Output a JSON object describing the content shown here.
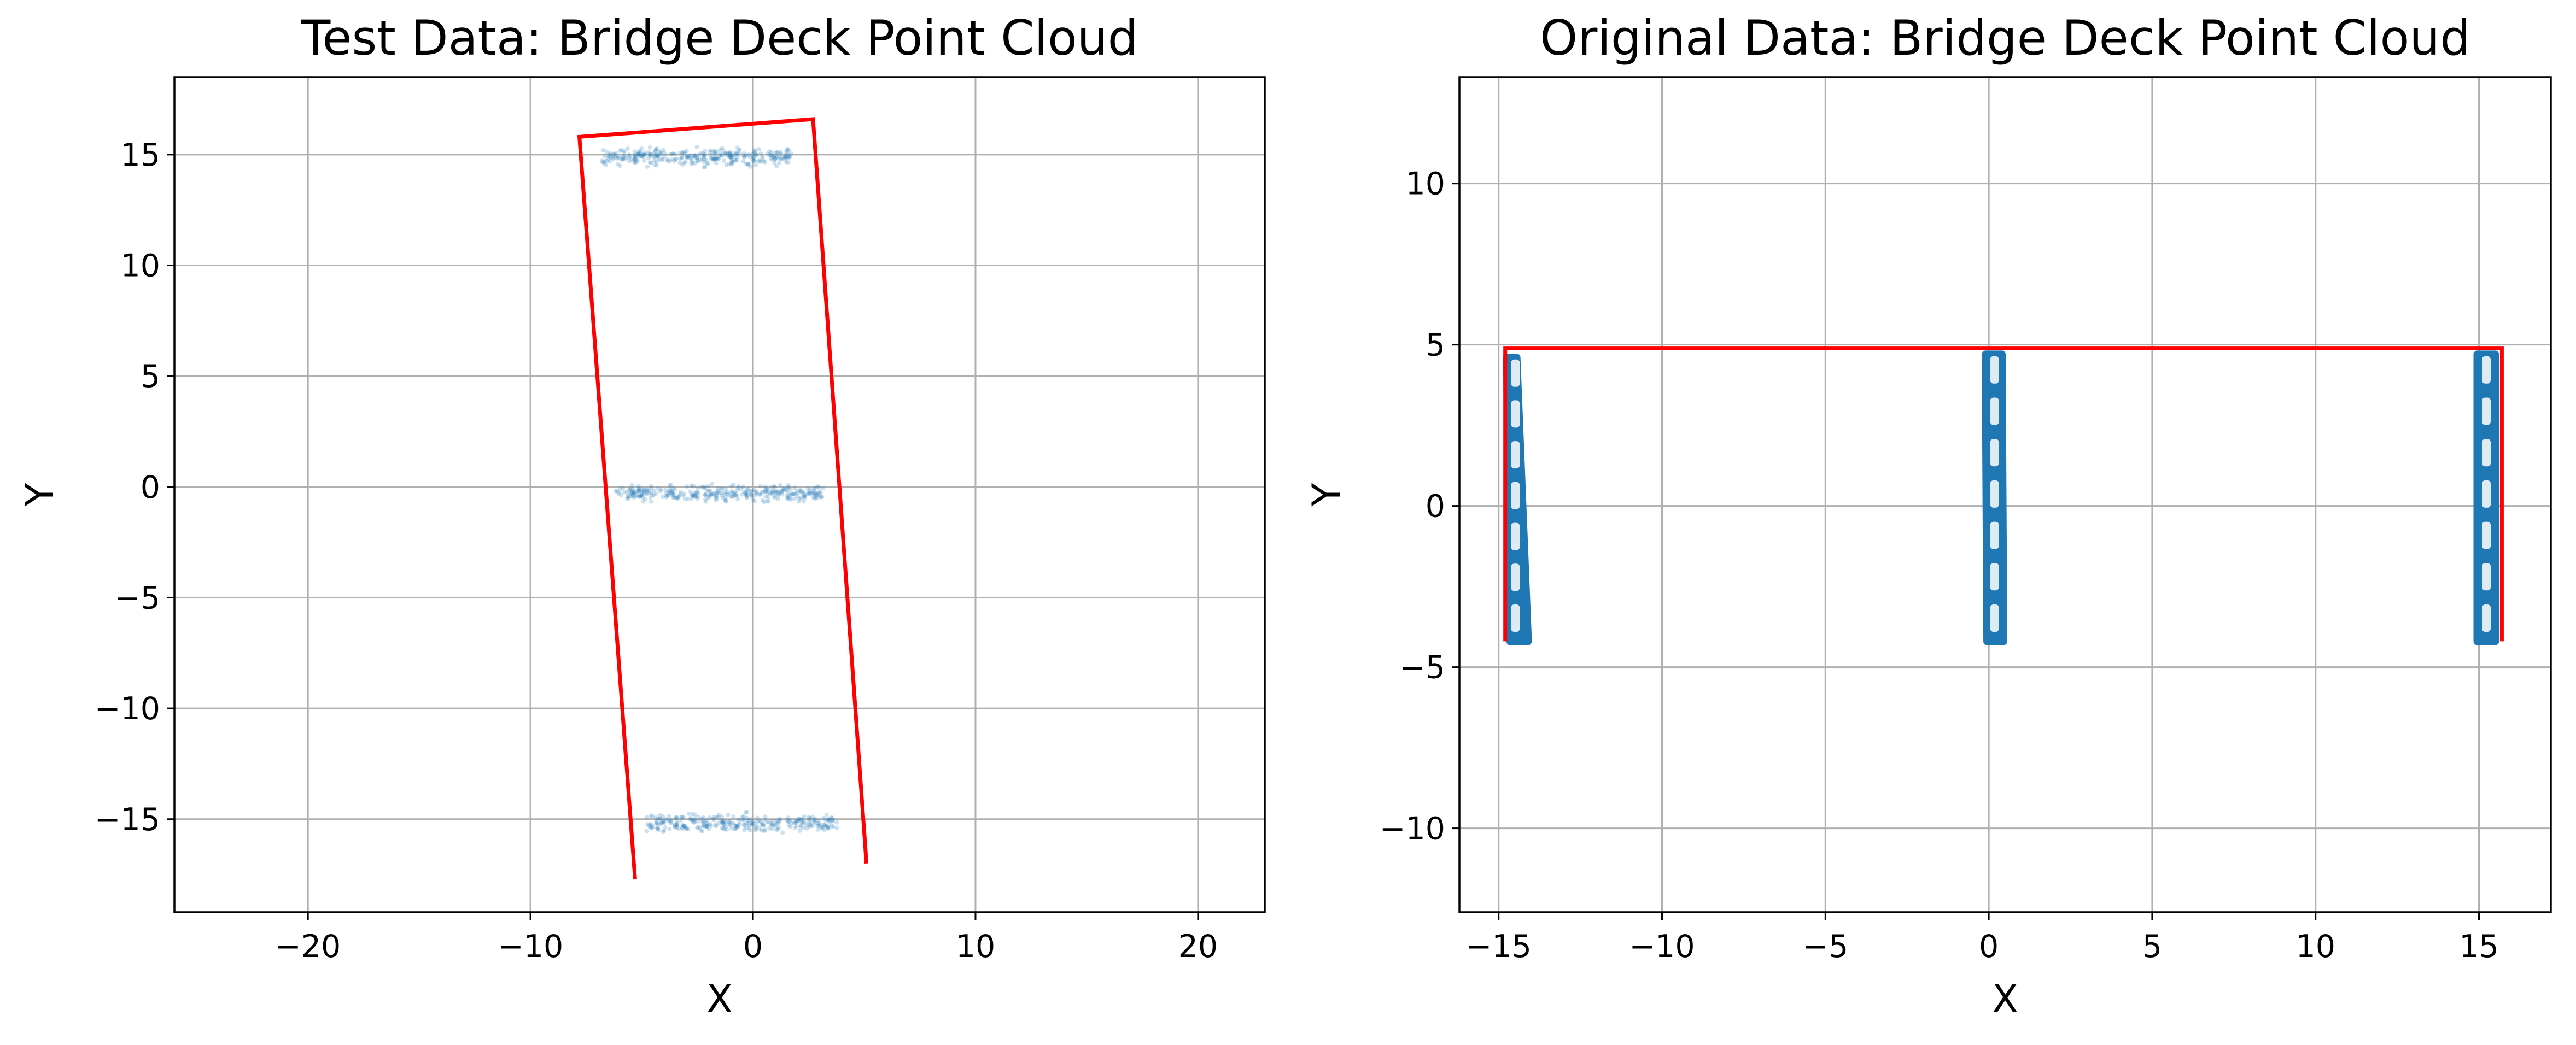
{
  "figure": {
    "background": "#ffffff",
    "axes_edge_color": "#000000",
    "grid_color": "#b0b0b0",
    "point_color": "#1f77b4",
    "outline_color": "#ff0000"
  },
  "chart_data": [
    {
      "type": "scatter",
      "title": "Test Data: Bridge Deck Point Cloud",
      "xlabel": "X",
      "ylabel": "Y",
      "xlim": [
        -26,
        23
      ],
      "ylim": [
        -19.2,
        18.5
      ],
      "xticks": [
        -20,
        -10,
        0,
        10,
        20
      ],
      "xtick_labels": [
        "−20",
        "−10",
        "0",
        "10",
        "20"
      ],
      "yticks": [
        -15,
        -10,
        -5,
        0,
        5,
        10,
        15
      ],
      "ytick_labels": [
        "−15",
        "−10",
        "−5",
        "0",
        "5",
        "10",
        "15"
      ],
      "grid": true,
      "point_opacity": 0.22,
      "point_clusters": [
        {
          "x_range": [
            -6.8,
            1.8
          ],
          "y_center": 14.9,
          "y_spread": 0.55,
          "count": 320
        },
        {
          "x_range": [
            -6.2,
            3.2
          ],
          "y_center": -0.3,
          "y_spread": 0.5,
          "count": 330
        },
        {
          "x_range": [
            -4.8,
            3.8
          ],
          "y_center": -15.2,
          "y_spread": 0.6,
          "count": 300
        }
      ],
      "outline": {
        "x": [
          -5.3,
          -7.8,
          2.7,
          5.1
        ],
        "y": [
          -17.7,
          15.8,
          16.6,
          -17.0
        ]
      }
    },
    {
      "type": "scatter",
      "title": "Original Data: Bridge Deck Point Cloud",
      "xlabel": "X",
      "ylabel": "Y",
      "xlim": [
        -16.2,
        17.2
      ],
      "ylim": [
        -12.6,
        13.3
      ],
      "xticks": [
        -15,
        -10,
        -5,
        0,
        5,
        10,
        15
      ],
      "xtick_labels": [
        "−15",
        "−10",
        "−5",
        "0",
        "5",
        "10",
        "15"
      ],
      "yticks": [
        -10,
        -5,
        0,
        5,
        10
      ],
      "ytick_labels": [
        "−10",
        "−5",
        "0",
        "5",
        "10"
      ],
      "grid": true,
      "point_opacity": 1,
      "point_bands": [
        {
          "x_bottom": [
            -14.65,
            -14.1
          ],
          "x_top": [
            -14.75,
            -14.45
          ],
          "y_range": [
            -4.2,
            4.6
          ]
        },
        {
          "x_bottom": [
            -0.05,
            0.45
          ],
          "x_top": [
            -0.1,
            0.4
          ],
          "y_range": [
            -4.2,
            4.7
          ]
        },
        {
          "x_bottom": [
            14.95,
            15.5
          ],
          "x_top": [
            14.95,
            15.5
          ],
          "y_range": [
            -4.2,
            4.7
          ]
        }
      ],
      "outline": {
        "x": [
          -14.8,
          -14.8,
          15.7,
          15.7
        ],
        "y": [
          -4.2,
          4.9,
          4.9,
          -4.2
        ]
      }
    }
  ]
}
